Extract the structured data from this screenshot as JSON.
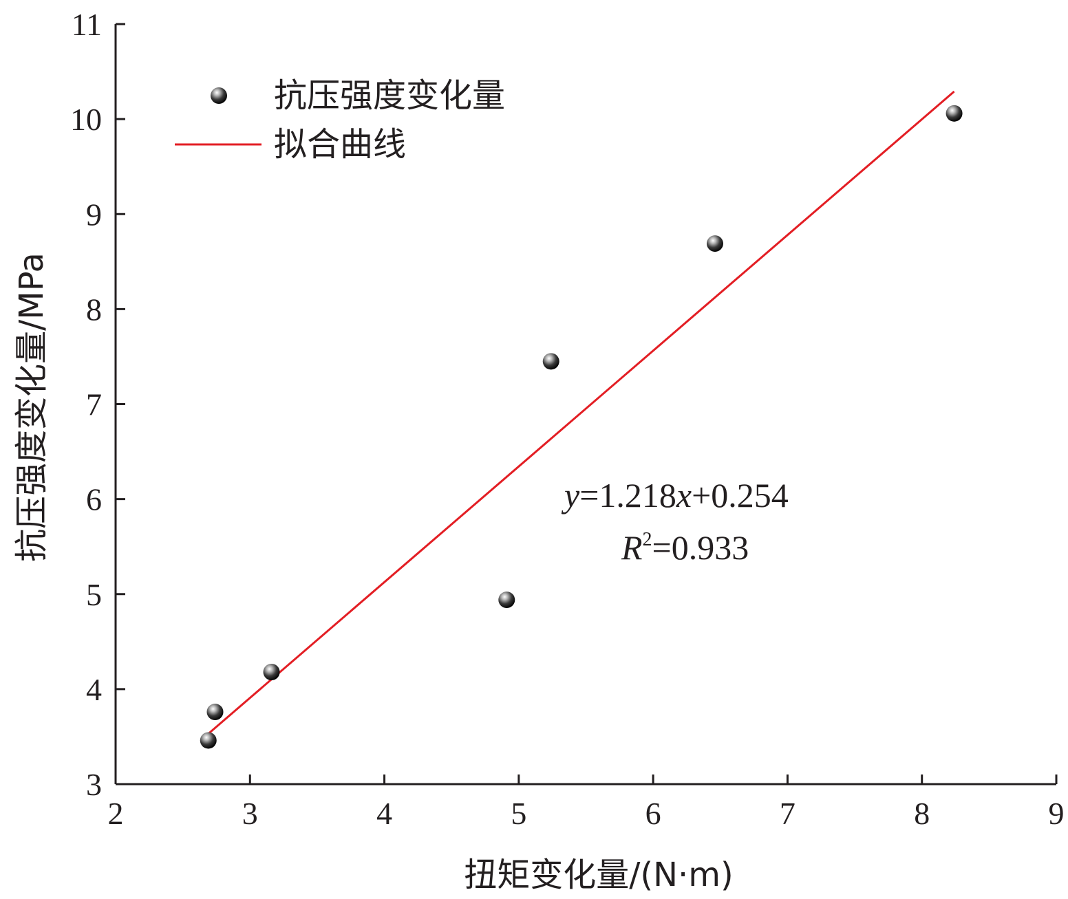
{
  "chart_data": {
    "type": "scatter",
    "xlabel": "扭矩变化量/(N·m)",
    "ylabel": "抗压强度变化量/MPa",
    "xlim": [
      2,
      9
    ],
    "ylim": [
      3,
      11
    ],
    "xticks": [
      2,
      3,
      4,
      5,
      6,
      7,
      8,
      9
    ],
    "yticks": [
      3,
      4,
      5,
      6,
      7,
      8,
      9,
      10,
      11
    ],
    "legend_position": "top-left",
    "grid": false,
    "series": [
      {
        "name": "抗压强度变化量",
        "kind": "scatter",
        "color": "#231f20",
        "x": [
          2.69,
          2.74,
          3.16,
          4.91,
          5.24,
          6.46,
          8.24
        ],
        "y": [
          3.46,
          3.76,
          4.18,
          4.94,
          7.45,
          8.69,
          10.06
        ]
      },
      {
        "name": "拟合曲线",
        "kind": "line",
        "color": "#e31e24",
        "slope": 1.218,
        "intercept": 0.254,
        "x_range": [
          2.69,
          8.24
        ]
      }
    ],
    "annotation": {
      "equation_y": "y",
      "equation_mid": "=1.218",
      "equation_x": "x",
      "equation_tail": "+0.254",
      "r_symbol": "R",
      "r_sup": "2",
      "r_value": "=0.933"
    }
  }
}
